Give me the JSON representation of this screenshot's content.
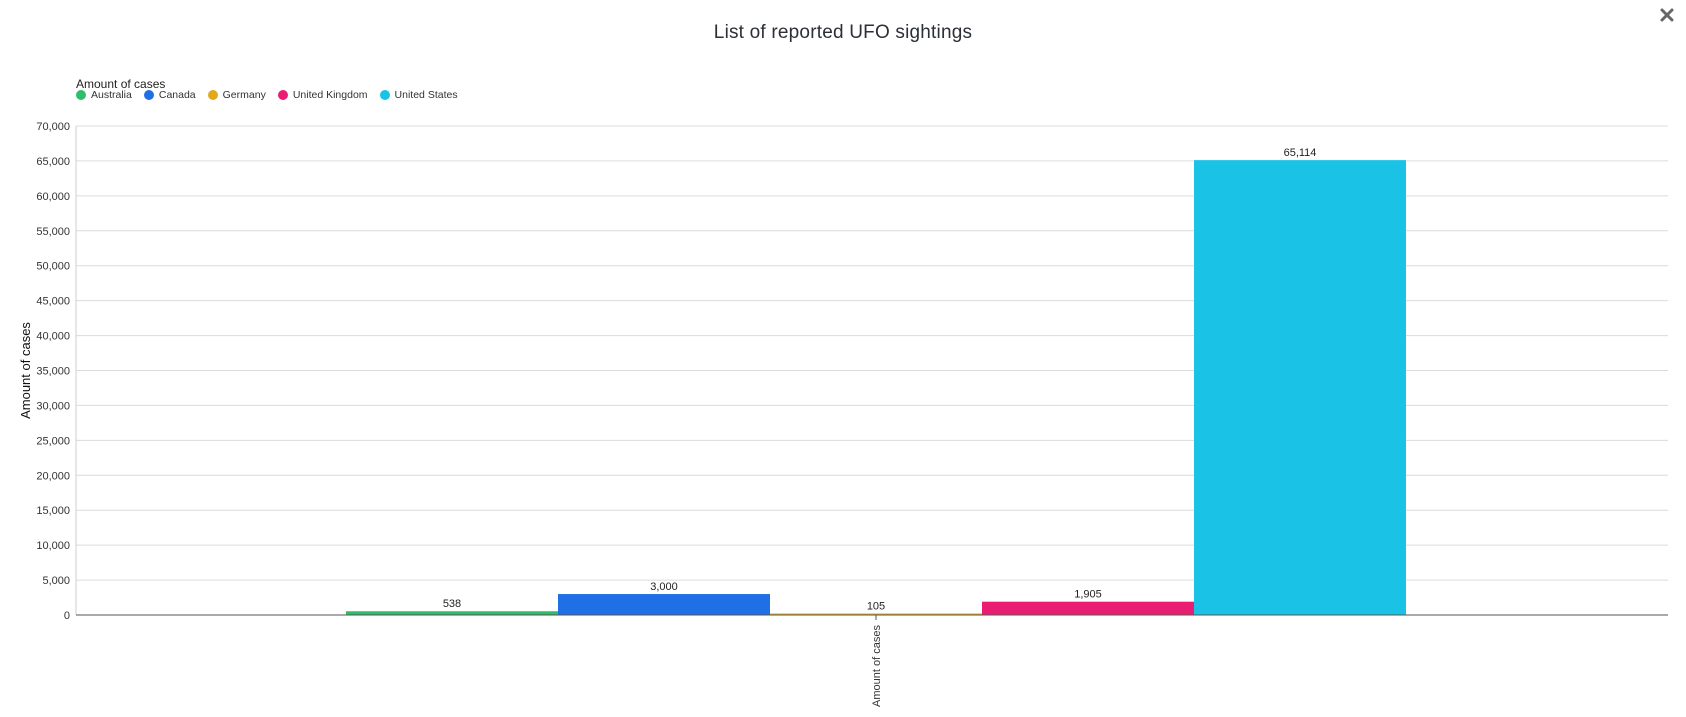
{
  "header": {
    "close_label": "×"
  },
  "chart_data": {
    "type": "bar",
    "title": "List of reported UFO sightings",
    "legend_title": "Amount of cases",
    "legend_placement": "top-left",
    "ylabel": "Amount of cases",
    "xlabel": "",
    "categories": [
      "Amount of cases"
    ],
    "ylim": [
      0,
      70000
    ],
    "ytick_step": 5000,
    "grid": true,
    "series": [
      {
        "name": "Australia",
        "values": [
          538
        ],
        "label": "538",
        "color": "#2ebd6b"
      },
      {
        "name": "Canada",
        "values": [
          3000
        ],
        "label": "3,000",
        "color": "#1f6fe5"
      },
      {
        "name": "Germany",
        "values": [
          105
        ],
        "label": "105",
        "color": "#e1a91b"
      },
      {
        "name": "United Kingdom",
        "values": [
          1905
        ],
        "label": "1,905",
        "color": "#e91e72"
      },
      {
        "name": "United States",
        "values": [
          65114
        ],
        "label": "65,114",
        "color": "#1ac3e5"
      }
    ]
  }
}
